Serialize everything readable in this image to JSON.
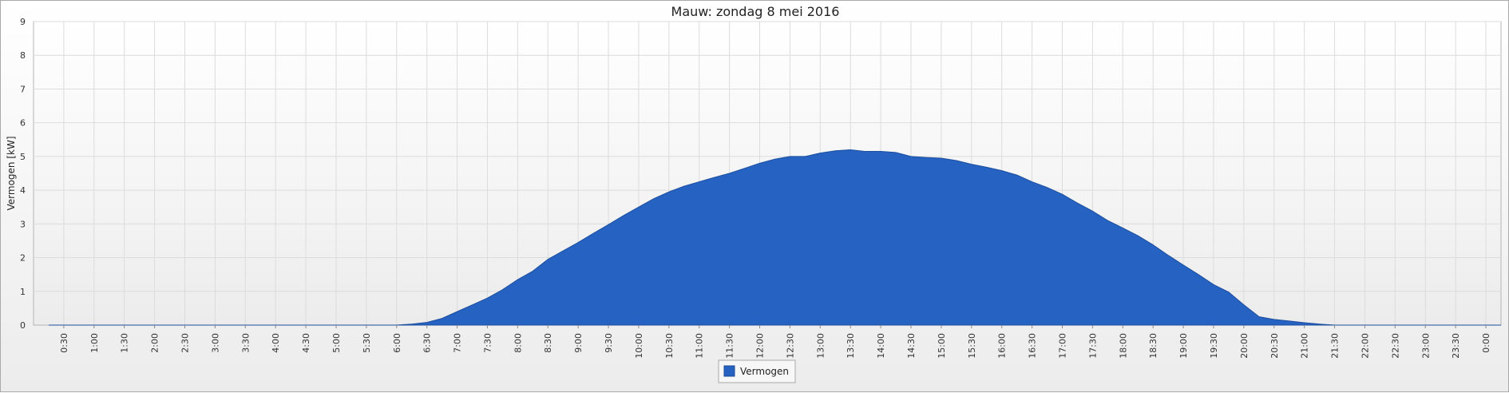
{
  "chart_data": {
    "type": "area",
    "title": "Mauw: zondag 8 mei 2016",
    "xlabel": "",
    "ylabel": "Vermogen [kW]",
    "ylim": [
      0,
      9
    ],
    "yticks": [
      "0",
      "1",
      "2",
      "3",
      "4",
      "5",
      "6",
      "7",
      "8",
      "9"
    ],
    "xlim": [
      "0:00",
      "24:15"
    ],
    "xticks": [
      "0:30",
      "1:00",
      "1:30",
      "2:00",
      "2:30",
      "3:00",
      "3:30",
      "4:00",
      "4:30",
      "5:00",
      "5:30",
      "6:00",
      "6:30",
      "7:00",
      "7:30",
      "8:00",
      "8:30",
      "9:00",
      "9:30",
      "10:00",
      "10:30",
      "11:00",
      "11:30",
      "12:00",
      "12:30",
      "13:00",
      "13:30",
      "14:00",
      "14:30",
      "15:00",
      "15:30",
      "16:00",
      "16:30",
      "17:00",
      "17:30",
      "18:00",
      "18:30",
      "19:00",
      "19:30",
      "20:00",
      "20:30",
      "21:00",
      "21:30",
      "22:00",
      "22:30",
      "23:00",
      "23:30",
      "0:00"
    ],
    "grid": true,
    "legend_position": "bottom-center",
    "series": [
      {
        "name": "Vermogen",
        "color": "#2562C1",
        "x": [
          "0:15",
          "6:00",
          "6:15",
          "6:30",
          "6:45",
          "7:00",
          "7:15",
          "7:30",
          "7:45",
          "8:00",
          "8:15",
          "8:30",
          "8:45",
          "9:00",
          "9:15",
          "9:30",
          "9:45",
          "10:00",
          "10:15",
          "10:30",
          "10:45",
          "11:00",
          "11:15",
          "11:30",
          "11:45",
          "12:00",
          "12:15",
          "12:30",
          "12:45",
          "13:00",
          "13:15",
          "13:30",
          "13:45",
          "14:00",
          "14:15",
          "14:30",
          "14:45",
          "15:00",
          "15:15",
          "15:30",
          "15:45",
          "16:00",
          "16:15",
          "16:30",
          "16:45",
          "17:00",
          "17:15",
          "17:30",
          "17:45",
          "18:00",
          "18:15",
          "18:30",
          "18:45",
          "19:00",
          "19:15",
          "19:30",
          "19:45",
          "20:00",
          "20:15",
          "20:30",
          "20:45",
          "21:00",
          "21:15",
          "21:30",
          "21:45",
          "24:15"
        ],
        "values": [
          0,
          0,
          0.03,
          0.08,
          0.2,
          0.4,
          0.6,
          0.8,
          1.05,
          1.35,
          1.6,
          1.95,
          2.2,
          2.45,
          2.72,
          2.98,
          3.25,
          3.5,
          3.75,
          3.95,
          4.12,
          4.25,
          4.38,
          4.5,
          4.65,
          4.8,
          4.92,
          5.0,
          5.0,
          5.1,
          5.17,
          5.2,
          5.15,
          5.15,
          5.12,
          5.0,
          4.97,
          4.95,
          4.88,
          4.77,
          4.68,
          4.58,
          4.45,
          4.25,
          4.08,
          3.88,
          3.62,
          3.38,
          3.1,
          2.88,
          2.65,
          2.38,
          2.07,
          1.78,
          1.5,
          1.2,
          0.98,
          0.6,
          0.25,
          0.17,
          0.12,
          0.07,
          0.03,
          0.0,
          0,
          0
        ]
      }
    ]
  }
}
